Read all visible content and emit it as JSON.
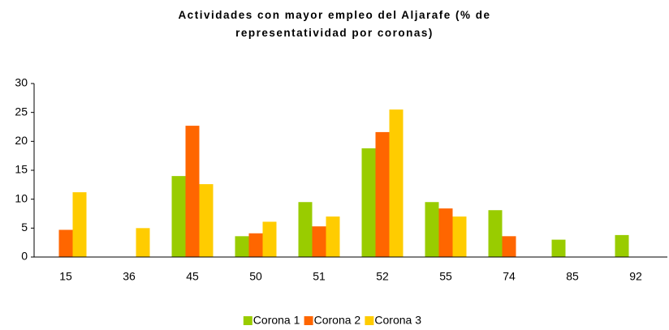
{
  "chart_data": {
    "type": "bar",
    "title": "Actividades con mayor empleo del Aljarafe (% de representatividad por coronas)",
    "categories": [
      "15",
      "36",
      "45",
      "50",
      "51",
      "52",
      "55",
      "74",
      "85",
      "92"
    ],
    "series": [
      {
        "name": "Corona 1",
        "color": "#99cc00",
        "values": [
          null,
          null,
          14.0,
          3.6,
          9.5,
          18.8,
          9.5,
          8.1,
          3.0,
          3.8
        ]
      },
      {
        "name": "Corona 2",
        "color": "#ff6600",
        "values": [
          4.7,
          null,
          22.7,
          4.1,
          5.3,
          21.6,
          8.4,
          3.6,
          null,
          null
        ]
      },
      {
        "name": "Corona 3",
        "color": "#ffcc00",
        "values": [
          11.2,
          5.0,
          12.6,
          6.1,
          7.0,
          25.5,
          7.0,
          null,
          null,
          null
        ]
      }
    ],
    "ylim": [
      0,
      30
    ],
    "yticks": [
      0,
      5,
      10,
      15,
      20,
      25,
      30
    ],
    "grid": false,
    "legend": "bottom"
  }
}
